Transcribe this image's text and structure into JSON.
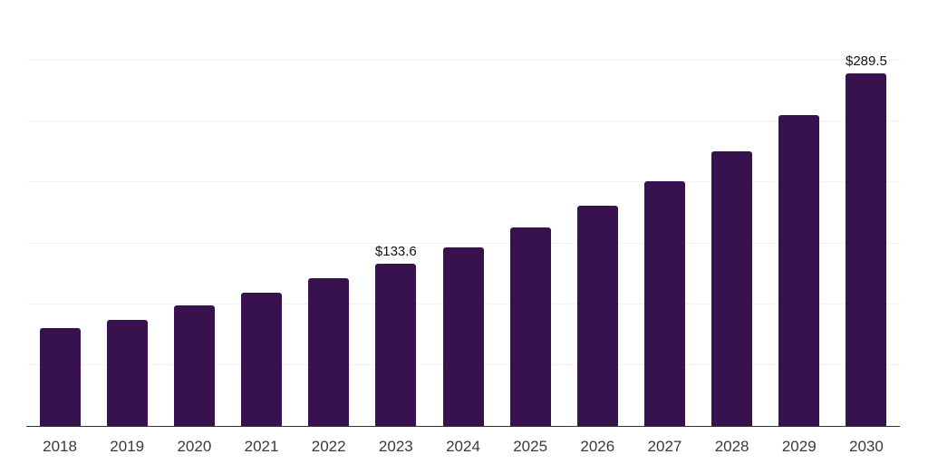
{
  "chart_data": {
    "type": "bar",
    "title": "",
    "xlabel": "",
    "ylabel": "",
    "categories": [
      "2018",
      "2019",
      "2020",
      "2021",
      "2022",
      "2023",
      "2024",
      "2025",
      "2026",
      "2027",
      "2028",
      "2029",
      "2030"
    ],
    "values": [
      80.6,
      86.8,
      98.7,
      109.4,
      121.1,
      133.6,
      146.7,
      162.9,
      180.8,
      201.4,
      225.8,
      255.1,
      289.5
    ],
    "value_prefix": "$",
    "data_labels": [
      {
        "category": "2023",
        "text": "$133.6"
      },
      {
        "category": "2030",
        "text": "$289.5"
      }
    ],
    "ylim": [
      0,
      350
    ],
    "grid_step": 50,
    "grid": "horizontal-only",
    "legend": "none",
    "y_tick_labels": "none",
    "colors": {
      "bar": "#37124E",
      "axis_line": "#333333",
      "gridline": "#F2F2F4",
      "x_tick_text": "#3A3A3A",
      "data_label_text": "#121212",
      "background": "#FFFFFF"
    }
  }
}
